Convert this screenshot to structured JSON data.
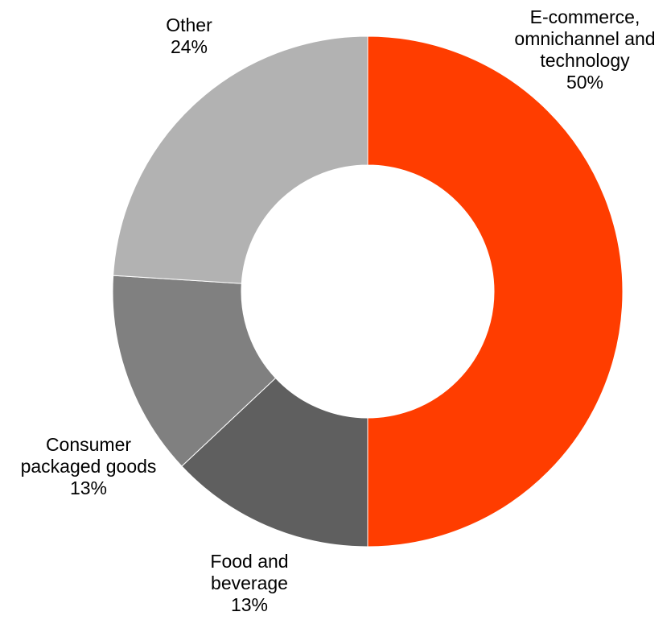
{
  "chart_data": {
    "type": "pie",
    "variant": "donut",
    "title": "",
    "start_angle_deg": 0,
    "direction": "clockwise",
    "slices": [
      {
        "key": "ecommerce",
        "label_lines": [
          "E-commerce,",
          "omnichannel and",
          "technology"
        ],
        "value_label": "50%",
        "value": 50,
        "color": "#FF3D00"
      },
      {
        "key": "food",
        "label_lines": [
          "Food and",
          "beverage"
        ],
        "value_label": "13%",
        "value": 13,
        "color": "#5F5F5F"
      },
      {
        "key": "cpg",
        "label_lines": [
          "Consumer",
          "packaged goods"
        ],
        "value_label": "13%",
        "value": 13,
        "color": "#808080"
      },
      {
        "key": "other",
        "label_lines": [
          "Other"
        ],
        "value_label": "24%",
        "value": 24,
        "color": "#B2B2B2"
      }
    ]
  }
}
